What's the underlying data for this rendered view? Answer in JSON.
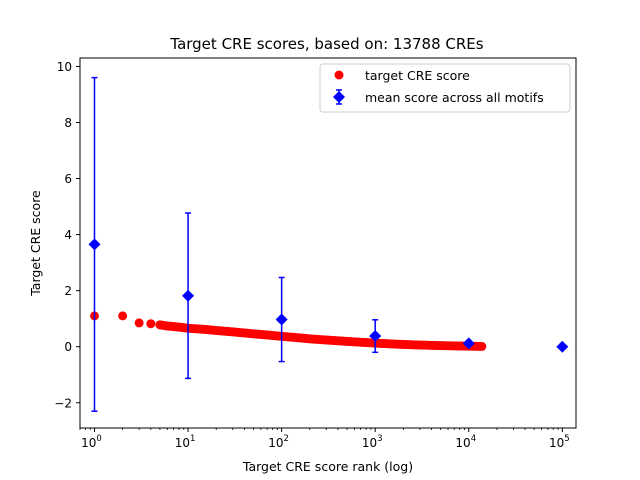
{
  "chart_data": {
    "type": "scatter",
    "title": "Target CRE scores, based on: 13788 CREs",
    "xlabel": "Target CRE score rank (log)",
    "ylabel": "Target CRE score",
    "xscale": "log",
    "xlim": [
      0.7,
      140000
    ],
    "ylim": [
      -2.9,
      10.3
    ],
    "yticks": [
      -2,
      0,
      2,
      4,
      6,
      8,
      10
    ],
    "xticks": [
      {
        "value": 1,
        "base": "10",
        "exp": "0"
      },
      {
        "value": 10,
        "base": "10",
        "exp": "1"
      },
      {
        "value": 100,
        "base": "10",
        "exp": "2"
      },
      {
        "value": 1000,
        "base": "10",
        "exp": "3"
      },
      {
        "value": 10000,
        "base": "10",
        "exp": "4"
      },
      {
        "value": 100000,
        "base": "10",
        "exp": "5"
      }
    ],
    "grid": false,
    "legend_position": "top-right",
    "series": [
      {
        "name": "target CRE score",
        "color": "#ff0000",
        "marker": "circle",
        "x": [
          1,
          2,
          3,
          4,
          5,
          6,
          7,
          8,
          9,
          10,
          15,
          20,
          30,
          50,
          70,
          100,
          150,
          200,
          300,
          500,
          700,
          1000,
          1500,
          2000,
          3000,
          5000,
          7000,
          10000,
          13788
        ],
        "y": [
          1.1,
          1.1,
          0.85,
          0.82,
          0.78,
          0.74,
          0.72,
          0.7,
          0.68,
          0.66,
          0.62,
          0.58,
          0.53,
          0.46,
          0.42,
          0.37,
          0.32,
          0.28,
          0.24,
          0.19,
          0.16,
          0.13,
          0.1,
          0.08,
          0.06,
          0.04,
          0.03,
          0.02,
          0.01
        ]
      },
      {
        "name": "mean score across all motifs",
        "color": "#0000ff",
        "marker": "diamond",
        "x": [
          1,
          10,
          100,
          1000,
          10000,
          100000
        ],
        "y": [
          3.65,
          1.82,
          0.97,
          0.38,
          0.12,
          0.0
        ],
        "err": [
          5.95,
          2.95,
          1.5,
          0.58,
          0.08,
          0.0
        ]
      }
    ]
  }
}
